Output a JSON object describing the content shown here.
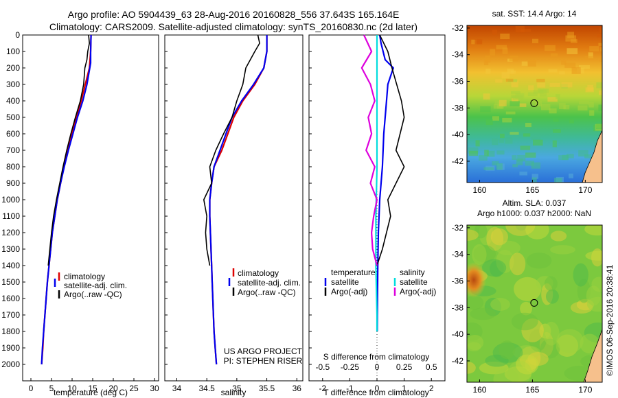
{
  "header": {
    "line1": "Argo profile: AO 5904439_63 28-Aug-2016 20160828_556 37.643S 165.164E",
    "line2": "Climatology: CARS2009. Satellite-adjusted climatology: synTS_20160830.nc (2d later)"
  },
  "chart_data": [
    {
      "type": "line",
      "name": "temperature-profile",
      "xlabel": "temperature (deg C)",
      "ylabel": "",
      "xlim": [
        -2,
        31
      ],
      "ylim": [
        0,
        2100
      ],
      "y_reversed": true,
      "xticks": [
        0,
        5,
        10,
        15,
        20,
        25,
        30
      ],
      "yticks": [
        0,
        100,
        200,
        300,
        400,
        500,
        600,
        700,
        800,
        900,
        1000,
        1100,
        1200,
        1300,
        1400,
        1500,
        1600,
        1700,
        1800,
        1900,
        2000
      ],
      "legend": [
        "climatology",
        "satellite-adj. clim.",
        "Argo(..raw -QC)"
      ],
      "legend_position": "lower-center",
      "series": [
        {
          "name": "climatology",
          "color": "#dd0000",
          "points": [
            [
              14.6,
              0
            ],
            [
              14.5,
              100
            ],
            [
              14.2,
              200
            ],
            [
              13.2,
              300
            ],
            [
              12.2,
              400
            ],
            [
              11.0,
              500
            ],
            [
              10.0,
              600
            ],
            [
              9.0,
              700
            ],
            [
              8.0,
              800
            ],
            [
              7.2,
              900
            ],
            [
              6.4,
              1000
            ],
            [
              5.8,
              1100
            ],
            [
              5.2,
              1200
            ],
            [
              4.8,
              1300
            ],
            [
              4.4,
              1400
            ],
            [
              4.0,
              1500
            ],
            [
              3.7,
              1600
            ],
            [
              3.4,
              1700
            ],
            [
              3.1,
              1800
            ],
            [
              2.9,
              1900
            ],
            [
              2.6,
              2000
            ]
          ]
        },
        {
          "name": "satellite-adj. clim.",
          "color": "#0000ee",
          "points": [
            [
              14.6,
              0
            ],
            [
              14.5,
              100
            ],
            [
              14.5,
              170
            ],
            [
              13.6,
              300
            ],
            [
              12.6,
              400
            ],
            [
              11.3,
              500
            ],
            [
              10.2,
              600
            ],
            [
              9.1,
              700
            ],
            [
              8.1,
              800
            ],
            [
              7.2,
              900
            ],
            [
              6.4,
              1000
            ],
            [
              5.8,
              1100
            ],
            [
              5.2,
              1200
            ],
            [
              4.8,
              1300
            ],
            [
              4.4,
              1400
            ],
            [
              4.0,
              1500
            ],
            [
              3.7,
              1600
            ],
            [
              3.4,
              1700
            ],
            [
              3.1,
              1800
            ],
            [
              2.8,
              1900
            ],
            [
              2.6,
              2000
            ]
          ]
        },
        {
          "name": "Argo(..raw -QC)",
          "color": "#000000",
          "points": [
            [
              14.0,
              0
            ],
            [
              14.2,
              50
            ],
            [
              13.8,
              100
            ],
            [
              13.6,
              150
            ],
            [
              13.1,
              200
            ],
            [
              12.8,
              300
            ],
            [
              12.0,
              400
            ],
            [
              10.8,
              500
            ],
            [
              9.7,
              600
            ],
            [
              8.7,
              700
            ],
            [
              7.8,
              800
            ],
            [
              7.0,
              900
            ],
            [
              6.2,
              1000
            ],
            [
              5.5,
              1100
            ],
            [
              5.0,
              1200
            ],
            [
              4.6,
              1300
            ],
            [
              4.2,
              1400
            ]
          ]
        }
      ]
    },
    {
      "type": "line",
      "name": "salinity-profile",
      "xlabel": "salinity",
      "xlim": [
        33.8,
        36.1
      ],
      "ylim": [
        0,
        2100
      ],
      "y_reversed": true,
      "xticks": [
        34,
        34.5,
        35,
        35.5,
        36
      ],
      "xtick_labels": [
        "34",
        "34.5",
        "35",
        "35.5",
        "36"
      ],
      "legend": [
        "climatology",
        "satellite-adj. clim.",
        "Argo(..raw -QC)"
      ],
      "legend_position": "lower-right",
      "annotation": [
        "US ARGO PROJECT",
        "PI: STEPHEN RISER"
      ],
      "series": [
        {
          "name": "climatology",
          "color": "#dd0000",
          "points": [
            [
              35.5,
              0
            ],
            [
              35.5,
              100
            ],
            [
              35.45,
              200
            ],
            [
              35.3,
              300
            ],
            [
              35.1,
              400
            ],
            [
              34.95,
              500
            ],
            [
              34.85,
              600
            ],
            [
              34.75,
              700
            ],
            [
              34.62,
              800
            ],
            [
              34.58,
              900
            ],
            [
              34.55,
              1000
            ],
            [
              34.55,
              1100
            ],
            [
              34.56,
              1200
            ],
            [
              34.57,
              1300
            ],
            [
              34.58,
              1400
            ],
            [
              34.59,
              1500
            ],
            [
              34.6,
              1600
            ],
            [
              34.61,
              1700
            ],
            [
              34.62,
              1800
            ],
            [
              34.64,
              1900
            ],
            [
              34.66,
              2000
            ]
          ]
        },
        {
          "name": "satellite-adj. clim.",
          "color": "#0000ee",
          "points": [
            [
              35.5,
              0
            ],
            [
              35.5,
              100
            ],
            [
              35.45,
              200
            ],
            [
              35.28,
              300
            ],
            [
              35.08,
              400
            ],
            [
              34.92,
              500
            ],
            [
              34.82,
              600
            ],
            [
              34.72,
              700
            ],
            [
              34.62,
              800
            ],
            [
              34.58,
              900
            ],
            [
              34.55,
              1000
            ],
            [
              34.55,
              1100
            ],
            [
              34.56,
              1200
            ],
            [
              34.57,
              1300
            ],
            [
              34.58,
              1400
            ],
            [
              34.59,
              1500
            ],
            [
              34.6,
              1600
            ],
            [
              34.61,
              1700
            ],
            [
              34.62,
              1800
            ],
            [
              34.64,
              1900
            ],
            [
              34.66,
              2000
            ]
          ]
        },
        {
          "name": "Argo(..raw -QC)",
          "color": "#000000",
          "points": [
            [
              35.35,
              0
            ],
            [
              35.38,
              50
            ],
            [
              35.3,
              100
            ],
            [
              35.15,
              200
            ],
            [
              35.1,
              300
            ],
            [
              35.0,
              400
            ],
            [
              34.92,
              500
            ],
            [
              34.78,
              600
            ],
            [
              34.65,
              700
            ],
            [
              34.55,
              800
            ],
            [
              34.58,
              900
            ],
            [
              34.45,
              1000
            ],
            [
              34.5,
              1100
            ],
            [
              34.48,
              1200
            ],
            [
              34.5,
              1300
            ],
            [
              34.55,
              1400
            ]
          ]
        }
      ]
    },
    {
      "type": "line",
      "name": "difference-profile",
      "xlabel": "T difference from climatology",
      "xlabel_top": "S difference from climatology",
      "xlim": [
        -2.5,
        2.5
      ],
      "ylim": [
        0,
        2100
      ],
      "y_reversed": true,
      "xticks": [
        -2,
        -1,
        0,
        1,
        2
      ],
      "top_xticks": [
        -0.5,
        -0.25,
        0,
        0.25,
        0.5
      ],
      "top_xtick_labels": [
        "-0.5",
        "-0.25",
        "0",
        "0.25",
        "0.5"
      ],
      "legend_groups": [
        {
          "title": "temperature",
          "entries": [
            "satellite",
            "Argo(-adj)"
          ]
        },
        {
          "title": "salinity",
          "entries": [
            "satellite",
            "Argo(-adj)"
          ]
        }
      ],
      "series": [
        {
          "name": "temperature satellite",
          "color": "#0000ee",
          "points": [
            [
              0.1,
              0
            ],
            [
              0.15,
              50
            ],
            [
              0.3,
              150
            ],
            [
              0.6,
              200
            ],
            [
              0.4,
              300
            ],
            [
              0.35,
              400
            ],
            [
              0.3,
              500
            ],
            [
              0.25,
              600
            ],
            [
              0.2,
              800
            ],
            [
              0.1,
              1000
            ],
            [
              0.05,
              1200
            ],
            [
              0.03,
              1400
            ],
            [
              0.02,
              1600
            ],
            [
              0.01,
              1800
            ]
          ]
        },
        {
          "name": "temperature Argo(-adj)",
          "color": "#000000",
          "points": [
            [
              0.1,
              0
            ],
            [
              0.4,
              100
            ],
            [
              0.55,
              200
            ],
            [
              0.9,
              400
            ],
            [
              1.0,
              500
            ],
            [
              0.7,
              700
            ],
            [
              1.0,
              800
            ],
            [
              0.4,
              1000
            ],
            [
              0.5,
              1100
            ],
            [
              0.2,
              1300
            ],
            [
              0.0,
              1400
            ]
          ]
        },
        {
          "name": "salinity satellite",
          "color": "#00dddd",
          "points": [
            [
              0.0,
              0
            ],
            [
              0.0,
              200
            ],
            [
              0.0,
              500
            ],
            [
              0.0,
              800
            ],
            [
              -0.01,
              1100
            ],
            [
              -0.01,
              1400
            ],
            [
              0.0,
              1700
            ],
            [
              0.0,
              1800
            ]
          ]
        },
        {
          "name": "salinity Argo(-adj)",
          "color": "#dd00dd",
          "points": [
            [
              -0.12,
              0
            ],
            [
              -0.05,
              100
            ],
            [
              -0.14,
              200
            ],
            [
              -0.06,
              300
            ],
            [
              -0.02,
              400
            ],
            [
              -0.08,
              500
            ],
            [
              -0.05,
              600
            ],
            [
              -0.1,
              700
            ],
            [
              -0.02,
              800
            ],
            [
              -0.06,
              900
            ],
            [
              0.0,
              1000
            ],
            [
              -0.03,
              1100
            ],
            [
              -0.05,
              1200
            ],
            [
              -0.04,
              1300
            ],
            [
              0.0,
              1400
            ]
          ]
        }
      ]
    },
    {
      "type": "heatmap",
      "name": "sst-map",
      "title": "sat. SST: 14.4  Argo: 14",
      "xticks": [
        160,
        165,
        170
      ],
      "yticks": [
        -32,
        -34,
        -36,
        -38,
        -40,
        -42
      ],
      "xlim": [
        158.8,
        171.6
      ],
      "ylim": [
        -43.6,
        -31.8
      ],
      "argo_position": [
        165.164,
        -37.643
      ]
    },
    {
      "type": "heatmap",
      "name": "sla-map",
      "title": [
        "Altim. SLA: 0.037",
        "Argo h1000: 0.037 h2000: NaN"
      ],
      "xticks": [
        160,
        165,
        170
      ],
      "yticks": [
        -32,
        -34,
        -36,
        -38,
        -40,
        -42
      ],
      "xlim": [
        158.8,
        171.6
      ],
      "ylim": [
        -43.6,
        -31.8
      ],
      "argo_position": [
        165.164,
        -37.643
      ]
    }
  ],
  "footer": {
    "credit": "©IMOS 06-Sep-2016 20:38:41"
  }
}
